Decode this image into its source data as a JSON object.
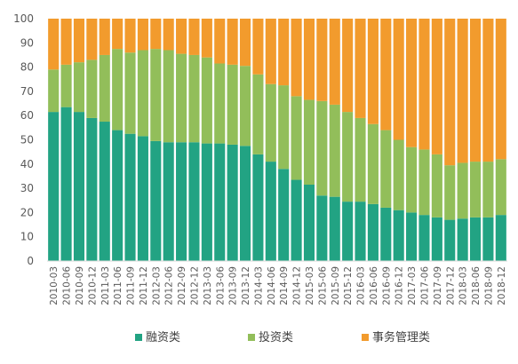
{
  "chart_data": {
    "type": "bar",
    "stacked": true,
    "title": "",
    "xlabel": "",
    "ylabel": "",
    "ylim": [
      0,
      100
    ],
    "yticks": [
      0,
      10,
      20,
      30,
      40,
      50,
      60,
      70,
      80,
      90,
      100
    ],
    "grid": false,
    "legend_position": "bottom",
    "categories": [
      "2010-03",
      "2010-06",
      "2010-09",
      "2010-12",
      "2011-03",
      "2011-06",
      "2011-09",
      "2011-12",
      "2012-03",
      "2012-06",
      "2012-09",
      "2012-12",
      "2013-03",
      "2013-06",
      "2013-09",
      "2013-12",
      "2014-03",
      "2014-06",
      "2014-09",
      "2014-12",
      "2015-03",
      "2015-06",
      "2015-09",
      "2015-12",
      "2016-03",
      "2016-06",
      "2016-09",
      "2016-12",
      "2017-03",
      "2017-06",
      "2017-09",
      "2017-12",
      "2018-03",
      "2018-06",
      "2018-09",
      "2018-12"
    ],
    "series": [
      {
        "name": "融资类",
        "color": "#22a383",
        "values": [
          61.5,
          63.5,
          61.5,
          59,
          57.5,
          54,
          52.5,
          51.5,
          49.5,
          49,
          49,
          49,
          48.5,
          48.5,
          48,
          47.5,
          44,
          41,
          38,
          33.5,
          31.5,
          27,
          26.5,
          24.5,
          24.5,
          23.5,
          22,
          21,
          20,
          19,
          18,
          17,
          17.5,
          18,
          18,
          19
        ]
      },
      {
        "name": "投资类",
        "color": "#92be5a",
        "values": [
          17.5,
          17.5,
          20.5,
          24,
          27.5,
          33.5,
          33.5,
          35.5,
          38,
          38,
          36.5,
          36,
          35.5,
          33,
          33,
          33,
          33,
          32,
          34.5,
          34.5,
          35,
          39,
          38,
          37,
          34.5,
          33,
          32,
          29,
          27,
          27,
          26,
          22.5,
          23,
          23,
          23,
          23
        ]
      },
      {
        "name": "事务管理类",
        "color": "#f29b2d",
        "values": [
          21,
          19,
          18,
          17,
          15,
          12.5,
          14,
          13,
          12.5,
          13,
          14.5,
          15,
          16,
          18.5,
          19,
          19.5,
          23,
          27,
          27.5,
          32,
          33.5,
          34,
          35.5,
          38.5,
          41,
          43.5,
          46,
          50,
          53,
          54,
          56,
          60.5,
          59.5,
          59,
          59,
          58
        ]
      }
    ]
  }
}
